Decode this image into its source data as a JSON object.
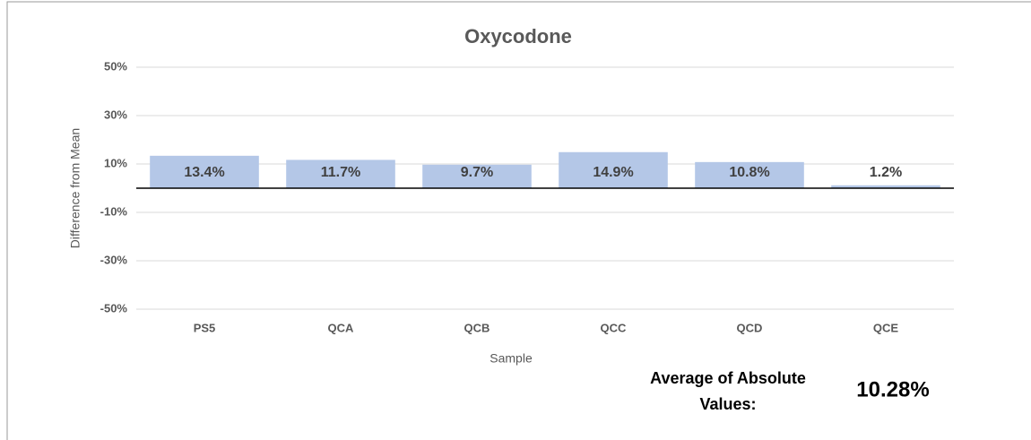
{
  "chart_data": {
    "type": "bar",
    "title": "Oxycodone",
    "x_label": "Sample",
    "y_label": "Difference from Mean",
    "categories": [
      "PS5",
      "QCA",
      "QCB",
      "QCC",
      "QCD",
      "QCE"
    ],
    "values": [
      13.4,
      11.7,
      9.7,
      14.9,
      10.8,
      1.2
    ],
    "value_labels": [
      "13.4%",
      "11.7%",
      "9.7%",
      "14.9%",
      "10.8%",
      "1.2%"
    ],
    "color": "#b4c7e7",
    "ylim": [
      -50,
      50
    ],
    "yticks": [
      {
        "value": -50,
        "label": "-50%"
      },
      {
        "value": -30,
        "label": "-30%"
      },
      {
        "value": -10,
        "label": "-10%"
      },
      {
        "value": 10,
        "label": "10%"
      },
      {
        "value": 30,
        "label": "30%"
      },
      {
        "value": 50,
        "label": "50%"
      }
    ],
    "grid": true,
    "annotations": [
      "Average of Absolute",
      "Values:",
      "10.28%"
    ]
  }
}
